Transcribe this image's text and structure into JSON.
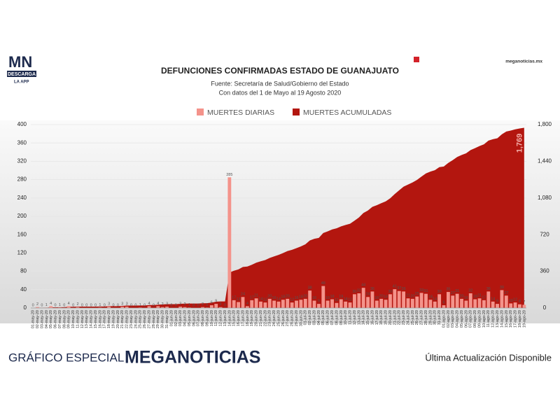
{
  "header": {
    "logo": "MN",
    "logo_band": "DESCARGA",
    "logo_sub": "LA APP",
    "site": "meganoticias.mx"
  },
  "footer": {
    "left": "GRÁFICO ESPECIAL",
    "brand": "MEGANOTICIAS",
    "right": "Última Actualización Disponible"
  },
  "chart_data": {
    "type": "bar",
    "title": "DEFUNCIONES CONFIRMADAS ESTADO DE GUANAJUATO",
    "subtitle": [
      "Fuente: Secretaría de Salud/Gobierno del Estado",
      "Con datos del 1 de Mayo al 19 Agosto 2020"
    ],
    "categories": [
      "01-may-20",
      "02-may-20",
      "03-may-20",
      "04-may-20",
      "05-may-20",
      "06-may-20",
      "07-may-20",
      "08-may-20",
      "09-may-20",
      "10-may-20",
      "11-may-20",
      "12-may-20",
      "13-may-20",
      "14-may-20",
      "15-may-20",
      "16-may-20",
      "17-may-20",
      "18-may-20",
      "19-may-20",
      "20-may-20",
      "21-may-20",
      "22-may-20",
      "23-may-20",
      "24-may-20",
      "25-may-20",
      "26-may-20",
      "27-may-20",
      "28-may-20",
      "29-may-20",
      "30-may-20",
      "31-may-20",
      "01-jun-20",
      "02-jun-20",
      "03-jun-20",
      "04-jun-20",
      "05-jun-20",
      "06-jun-20",
      "07-jun-20",
      "08-jun-20",
      "09-jun-20",
      "10-jun-20",
      "11-jun-20",
      "12-jun-20",
      "13-jun-20",
      "14-jun-20",
      "15-jun-20",
      "16-jun-20",
      "17-jun-20",
      "18-jun-20",
      "19-jun-20",
      "20-jun-20",
      "21-jun-20",
      "22-jun-20",
      "23-jun-20",
      "24-jun-20",
      "25-jun-20",
      "26-jun-20",
      "27-jun-20",
      "28-jun-20",
      "29-jun-20",
      "30-jun-20",
      "01-jul-20",
      "02-jul-20",
      "03-jul-20",
      "04-jul-20",
      "05-jul-20",
      "06-jul-20",
      "07-jul-20",
      "08-jul-20",
      "09-jul-20",
      "10-jul-20",
      "11-jul-20",
      "12-jul-20",
      "13-jul-20",
      "14-jul-20",
      "15-jul-20",
      "16-jul-20",
      "17-jul-20",
      "18-jul-20",
      "19-jul-20",
      "20-jul-20",
      "21-jul-20",
      "22-jul-20",
      "23-jul-20",
      "24-jul-20",
      "25-jul-20",
      "26-jul-20",
      "27-jul-20",
      "28-jul-20",
      "29-jul-20",
      "30-jul-20",
      "31-jul-20",
      "01-ago-20",
      "02-ago-20",
      "03-ago-20",
      "04-ago-20",
      "05-ago-20",
      "06-ago-20",
      "07-ago-20",
      "08-ago-20",
      "09-ago-20",
      "10-ago-20",
      "11-ago-20",
      "12-ago-20",
      "13-ago-20",
      "14-ago-20",
      "15-ago-20",
      "16-ago-20",
      "17-ago-20",
      "18-ago-20",
      "19-ago-20"
    ],
    "series": [
      {
        "name": "MUERTES DIARIAS",
        "color": "#f4938b",
        "values": [
          0,
          2,
          0,
          1,
          4,
          0,
          1,
          0,
          4,
          0,
          2,
          0,
          0,
          0,
          0,
          1,
          0,
          3,
          0,
          0,
          3,
          3,
          0,
          0,
          1,
          0,
          4,
          0,
          4,
          2,
          3,
          0,
          0,
          3,
          2,
          1,
          0,
          0,
          2,
          1,
          6,
          9,
          2,
          0,
          285,
          17,
          13,
          24,
          4,
          17,
          21,
          14,
          12,
          20,
          16,
          14,
          18,
          20,
          12,
          16,
          18,
          20,
          38,
          16,
          9,
          48,
          16,
          19,
          11,
          19,
          14,
          12,
          30,
          32,
          44,
          24,
          36,
          16,
          20,
          18,
          30,
          41,
          37,
          36,
          21,
          20,
          25,
          33,
          31,
          18,
          14,
          30,
          6,
          35,
          27,
          31,
          20,
          16,
          32,
          19,
          21,
          17,
          36,
          14,
          9,
          39,
          27,
          10,
          12,
          8,
          7
        ]
      },
      {
        "name": "MUERTES ACUMULADAS",
        "color": "#b3160f",
        "type": "area",
        "axis": "y2",
        "end_label": "1,769",
        "values": [
          0,
          2,
          2,
          3,
          7,
          7,
          8,
          8,
          12,
          12,
          14,
          14,
          14,
          14,
          14,
          15,
          15,
          18,
          18,
          18,
          21,
          24,
          24,
          24,
          25,
          25,
          29,
          29,
          33,
          35,
          38,
          38,
          38,
          41,
          43,
          44,
          44,
          44,
          46,
          47,
          53,
          62,
          64,
          64,
          349,
          366,
          379,
          403,
          407,
          424,
          445,
          459,
          471,
          491,
          507,
          521,
          539,
          559,
          571,
          587,
          605,
          625,
          663,
          679,
          688,
          736,
          752,
          771,
          782,
          801,
          815,
          827,
          857,
          889,
          933,
          957,
          993,
          1009,
          1029,
          1047,
          1077,
          1118,
          1155,
          1191,
          1212,
          1232,
          1257,
          1290,
          1321,
          1339,
          1353,
          1383,
          1389,
          1424,
          1451,
          1482,
          1502,
          1518,
          1550,
          1569,
          1590,
          1607,
          1643,
          1657,
          1666,
          1705,
          1732,
          1742,
          1754,
          1762,
          1769
        ]
      }
    ],
    "ylim": [
      0,
      400
    ],
    "yticks": [
      0,
      40,
      80,
      120,
      160,
      200,
      240,
      280,
      320,
      360,
      400
    ],
    "y2lim": [
      0,
      1800
    ],
    "y2ticks": [
      0,
      360,
      720,
      {
        "value": 1080,
        "label": "1,080"
      },
      {
        "value": 1440,
        "label": "1,440"
      },
      {
        "value": 1800,
        "label": "1,800"
      }
    ],
    "grid": true
  }
}
